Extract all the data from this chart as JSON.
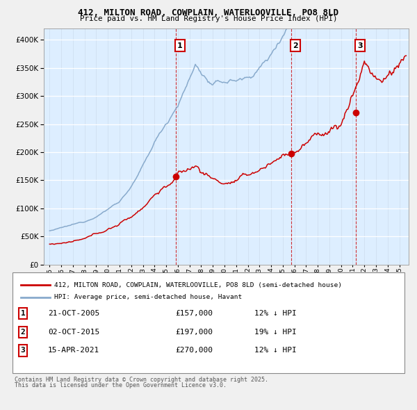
{
  "title1": "412, MILTON ROAD, COWPLAIN, WATERLOOVILLE, PO8 8LD",
  "title2": "Price paid vs. HM Land Registry's House Price Index (HPI)",
  "legend_label_red": "412, MILTON ROAD, COWPLAIN, WATERLOOVILLE, PO8 8LD (semi-detached house)",
  "legend_label_blue": "HPI: Average price, semi-detached house, Havant",
  "transactions": [
    {
      "num": "1",
      "date": "21-OCT-2005",
      "date_val": 2005.81,
      "price": 157000,
      "price_str": "£157,000",
      "hpi_diff": "12% ↓ HPI"
    },
    {
      "num": "2",
      "date": "02-OCT-2015",
      "date_val": 2015.75,
      "price": 197000,
      "price_str": "£197,000",
      "hpi_diff": "19% ↓ HPI"
    },
    {
      "num": "3",
      "date": "15-APR-2021",
      "date_val": 2021.29,
      "price": 270000,
      "price_str": "£270,000",
      "hpi_diff": "12% ↓ HPI"
    }
  ],
  "footer_line1": "Contains HM Land Registry data © Crown copyright and database right 2025.",
  "footer_line2": "This data is licensed under the Open Government Licence v3.0.",
  "ylim": [
    0,
    420000
  ],
  "yticks": [
    0,
    50000,
    100000,
    150000,
    200000,
    250000,
    300000,
    350000,
    400000
  ],
  "xlim_start": 1994.5,
  "xlim_end": 2025.8,
  "red_color": "#cc0000",
  "blue_color": "#88aacc",
  "plot_bg_color": "#ddeeff",
  "fig_bg_color": "#f0f0f0"
}
